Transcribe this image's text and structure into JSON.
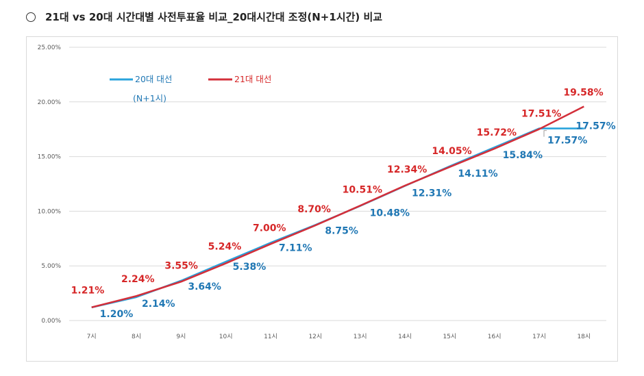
{
  "title": "21대 vs 20대 시간대별 사전투표율 비교_20대시간대 조정(N+1시간) 비교",
  "colors": {
    "series20": "#29a3dc",
    "series21": "#d32f3a",
    "label20": "#1f77b4",
    "label21": "#d62728",
    "grid": "#d9d9d9"
  },
  "chart_data": {
    "type": "line",
    "title": "21대 vs 20대 시간대별 사전투표율 비교_20대시간대 조정(N+1시간) 비교",
    "categories": [
      "7시",
      "8시",
      "9시",
      "10시",
      "11시",
      "12시",
      "13시",
      "14시",
      "15시",
      "16시",
      "17시",
      "18시"
    ],
    "y_ticks": [
      "0.00%",
      "5.00%",
      "10.00%",
      "15.00%",
      "20.00%",
      "25.00%"
    ],
    "ylim": [
      0,
      25
    ],
    "grid": true,
    "legend": {
      "placement": "top-left"
    },
    "series": [
      {
        "name": "20대 대선",
        "legend_sub": "(N+1시)",
        "values": [
          1.2,
          2.14,
          3.64,
          5.38,
          7.11,
          8.75,
          10.48,
          12.31,
          14.11,
          15.84,
          17.57,
          17.57
        ],
        "labels": [
          "1.20%",
          "2.14%",
          "3.64%",
          "5.38%",
          "7.11%",
          "8.75%",
          "10.48%",
          "12.31%",
          "14.11%",
          "15.84%",
          "17.57%",
          "17.57%"
        ]
      },
      {
        "name": "21대 대선",
        "values": [
          1.21,
          2.24,
          3.55,
          5.24,
          7.0,
          8.7,
          10.51,
          12.34,
          14.05,
          15.72,
          17.51,
          19.58
        ],
        "labels": [
          "1.21%",
          "2.24%",
          "3.55%",
          "5.24%",
          "7.00%",
          "8.70%",
          "10.51%",
          "12.34%",
          "14.05%",
          "15.72%",
          "17.51%",
          "19.58%"
        ]
      }
    ]
  }
}
